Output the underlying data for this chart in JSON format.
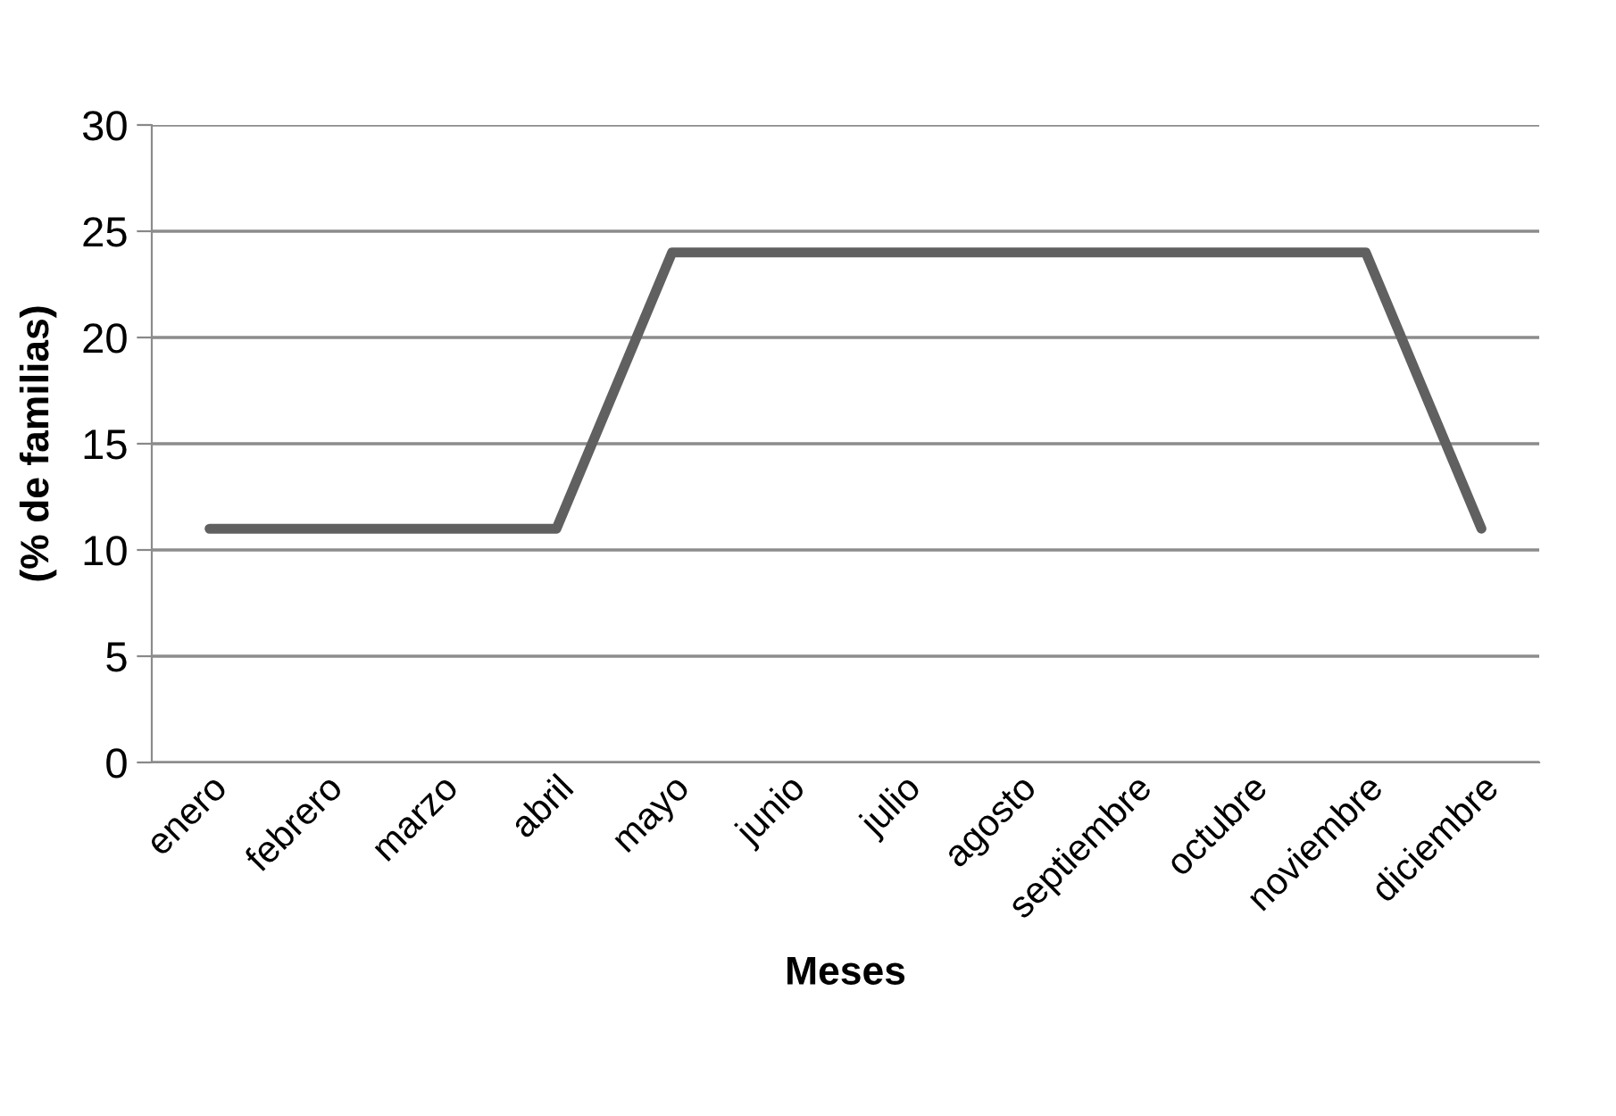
{
  "chart_data": {
    "type": "line",
    "xlabel": "Meses",
    "ylabel": "(% de familias)",
    "categories": [
      "enero",
      "febrero",
      "marzo",
      "abril",
      "mayo",
      "junio",
      "julio",
      "agosto",
      "septiembre",
      "octubre",
      "noviembre",
      "diciembre"
    ],
    "series": [
      {
        "color": "#606060",
        "values": [
          11,
          11,
          11,
          11,
          24,
          24,
          24,
          24,
          24,
          24,
          24,
          11
        ]
      }
    ],
    "ylim": [
      0,
      30
    ],
    "yticks": [
      0,
      5,
      10,
      15,
      20,
      25,
      30
    ],
    "grid": "y",
    "marker": "none",
    "line_style": "solid"
  }
}
